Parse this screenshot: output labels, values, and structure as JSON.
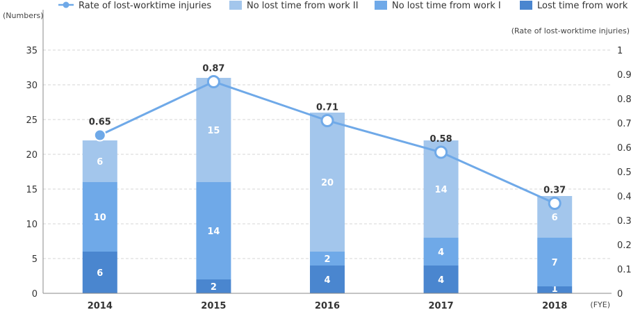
{
  "chart_data": {
    "type": "bar",
    "stacked": true,
    "categories": [
      "2014",
      "2015",
      "2016",
      "2017",
      "2018"
    ],
    "series": [
      {
        "name": "Lost time from work",
        "values": [
          6,
          2,
          4,
          4,
          1
        ],
        "color": "#4a86cf"
      },
      {
        "name": "No lost time from work I",
        "values": [
          10,
          14,
          2,
          4,
          7
        ],
        "color": "#6fa9e8"
      },
      {
        "name": "No lost time from work II",
        "values": [
          6,
          15,
          20,
          14,
          6
        ],
        "color": "#a3c6ec"
      }
    ],
    "line_series": {
      "name": "Rate of lost-worktime injuries",
      "values": [
        0.65,
        0.87,
        0.71,
        0.58,
        0.37
      ],
      "value_labels": [
        "0.65",
        "0.87",
        "0.71",
        "0.58",
        "0.37"
      ],
      "color": "#6fa9e8",
      "axis": "right"
    },
    "legend_order": [
      "Rate of lost-worktime injuries",
      "No lost time from work II",
      "No lost time from work I",
      "Lost time from work"
    ],
    "legend_placement": "top",
    "ylabel": "(Numbers)",
    "y2label": "(Rate of lost-worktime injuries)",
    "xlabel": "(FYE)",
    "ylim": [
      0,
      35
    ],
    "yticks": [
      0,
      5,
      10,
      15,
      20,
      25,
      30,
      35
    ],
    "y2lim": [
      0,
      1
    ],
    "y2ticks": [
      "0",
      "0.1",
      "0.2",
      "0.3",
      "0.4",
      "0.5",
      "0.6",
      "0.7",
      "0.8",
      "0.9",
      "1"
    ],
    "grid": true
  }
}
